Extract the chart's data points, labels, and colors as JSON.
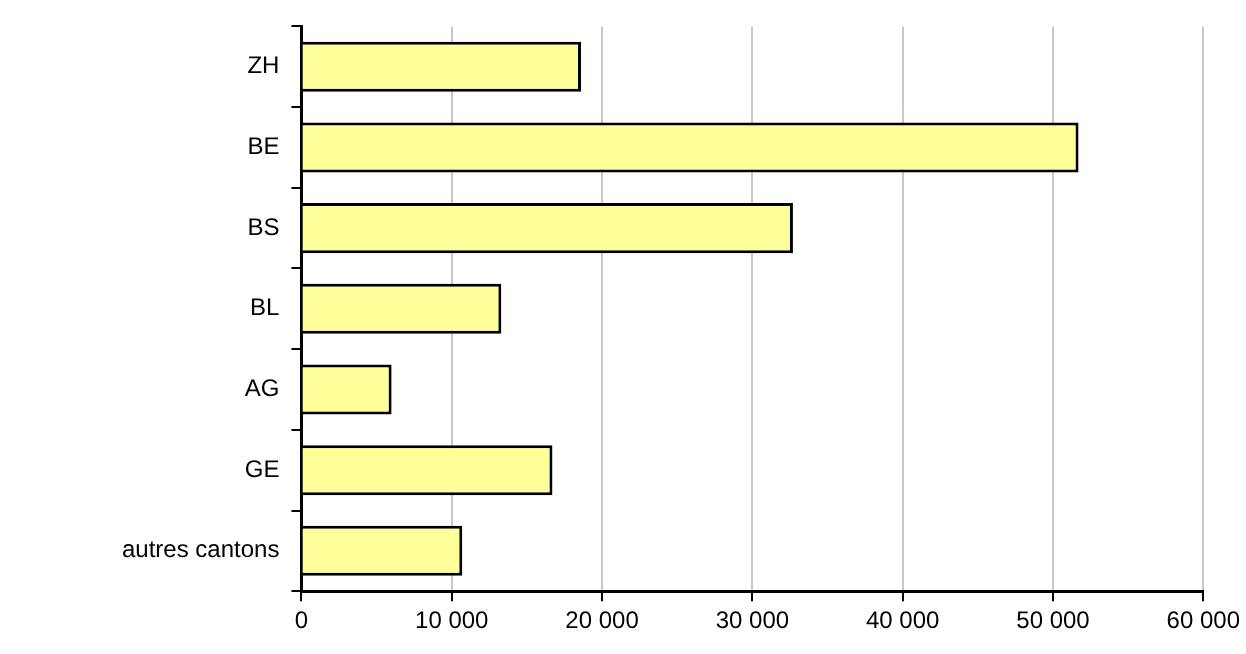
{
  "chart_data": {
    "type": "bar",
    "orientation": "horizontal",
    "categories": [
      "ZH",
      "BE",
      "BS",
      "BL",
      "AG",
      "GE",
      "autres cantons"
    ],
    "values": [
      18600,
      51700,
      32700,
      13300,
      6000,
      16700,
      10700
    ],
    "color": "#ffff99",
    "xlim": [
      0,
      60000
    ],
    "xticks": [
      0,
      {
        "value": 10000,
        "label": "10 000"
      },
      {
        "value": 20000,
        "label": "20 000"
      },
      {
        "value": 30000,
        "label": "30 000"
      },
      {
        "value": 40000,
        "label": "40 000"
      },
      {
        "value": 50000,
        "label": "50 000"
      },
      {
        "value": 60000,
        "label": "60 000"
      }
    ],
    "grid": "x",
    "legend": false
  }
}
